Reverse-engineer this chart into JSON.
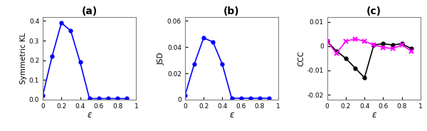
{
  "epsilon": [
    0,
    0.1,
    0.2,
    0.3,
    0.4,
    0.5,
    0.6,
    0.7,
    0.8,
    0.9
  ],
  "sym_kl": [
    0.02,
    0.22,
    0.39,
    0.35,
    0.19,
    0.005,
    0.005,
    0.005,
    0.005,
    0.005
  ],
  "jsd": [
    0.003,
    0.027,
    0.047,
    0.044,
    0.027,
    0.001,
    0.001,
    0.001,
    0.001,
    0.001
  ],
  "ccc_yx": [
    0.002,
    -0.002,
    -0.005,
    -0.009,
    -0.013,
    0.0005,
    0.001,
    0.0005,
    0.001,
    -0.001
  ],
  "ccc_xy": [
    0.002,
    -0.003,
    0.002,
    0.003,
    0.002,
    0.0005,
    -0.0005,
    -0.001,
    0.0005,
    -0.002
  ],
  "line_color_blue": "#0000FF",
  "line_color_black": "#000000",
  "line_color_magenta": "#FF00FF",
  "sym_kl_ylim": [
    0,
    0.42
  ],
  "jsd_ylim": [
    0,
    0.063
  ],
  "ccc_ylim": [
    -0.022,
    0.012
  ],
  "sym_kl_yticks": [
    0,
    0.1,
    0.2,
    0.3,
    0.4
  ],
  "jsd_yticks": [
    0,
    0.02,
    0.04,
    0.06
  ],
  "ccc_yticks": [
    -0.02,
    -0.01,
    0,
    0.01
  ],
  "xticks": [
    0,
    0.2,
    0.4,
    0.6,
    0.8,
    1
  ],
  "xlabel": "ε",
  "ylabel_a": "Symmetric KL",
  "ylabel_b": "JSD",
  "ylabel_c": "CCC",
  "title_a": "(a)",
  "title_b": "(b)",
  "title_c": "(c)",
  "background_color": "#ffffff",
  "spine_color": "#808080",
  "fig_width": 6.0,
  "fig_height": 1.84
}
